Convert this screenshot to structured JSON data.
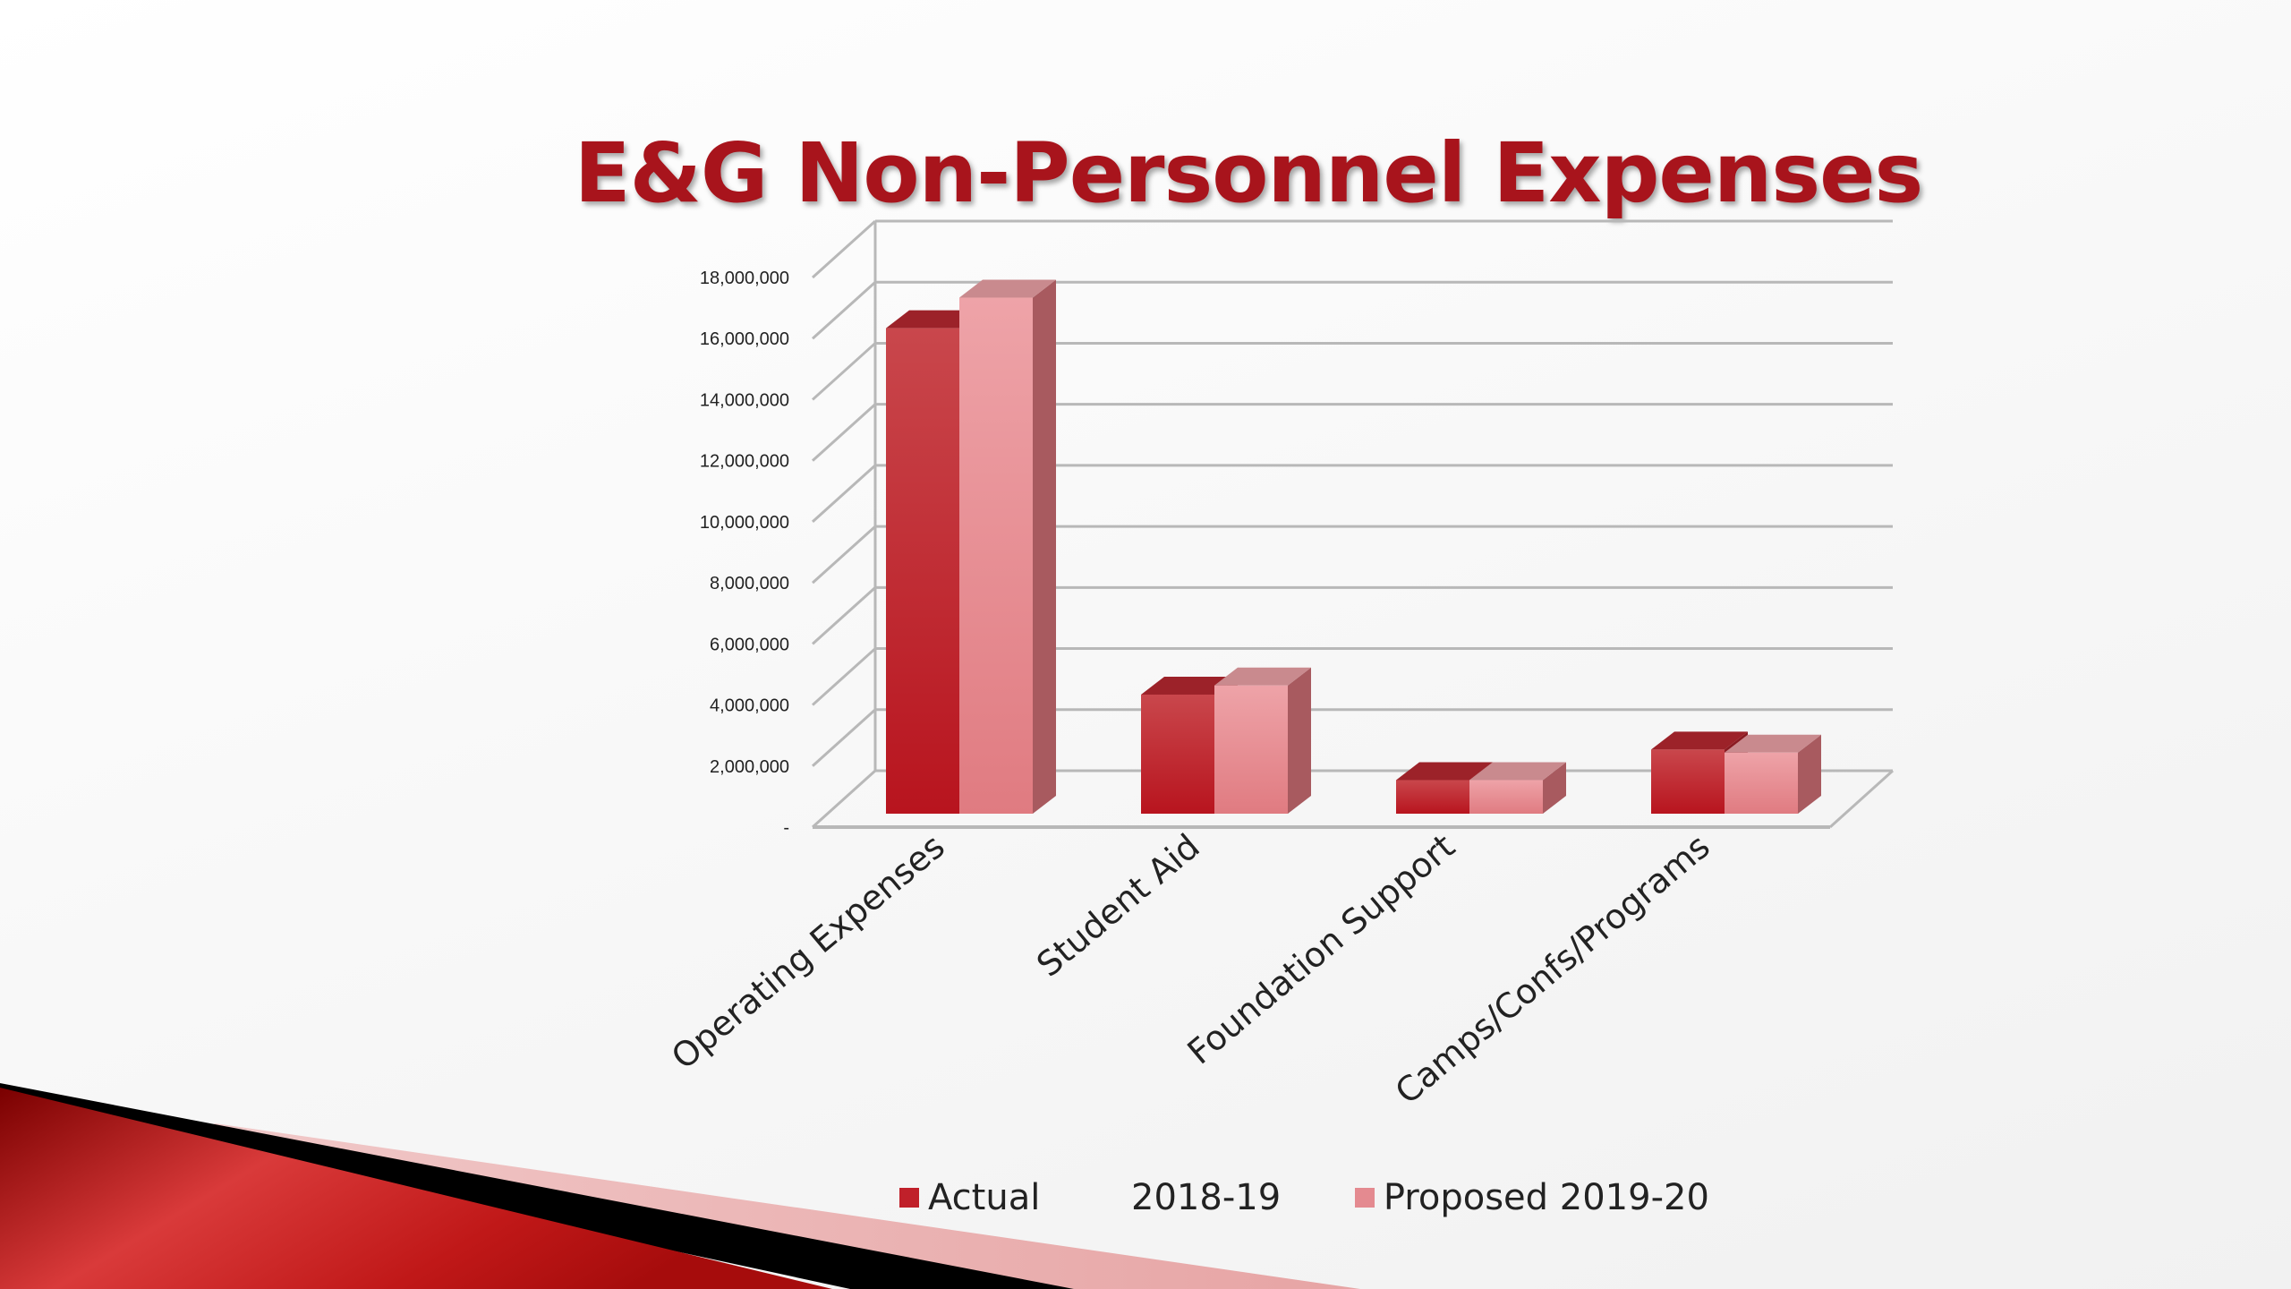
{
  "slide": {
    "title": "E&G Non-Personnel Expenses"
  },
  "colors": {
    "title": "#a8141c",
    "actual": "#c0202a",
    "proposed": "#e48a90",
    "gridline": "#b8b8b8",
    "banner_dark": "#7a0000",
    "banner_red": "#d32a2a",
    "banner_light": "#e8a6a6",
    "banner_black": "#000000"
  },
  "chart_data": {
    "type": "bar",
    "style": "3d-clustered-column",
    "categories": [
      "Operating Expenses",
      "Student Aid",
      "Foundation Support",
      "Camps/Confs/Programs"
    ],
    "series": [
      {
        "name": "Actual        2018-19",
        "values": [
          15900000,
          3900000,
          1100000,
          2100000
        ]
      },
      {
        "name": "Proposed 2019-20",
        "values": [
          16900000,
          4200000,
          1100000,
          2000000
        ]
      }
    ],
    "yticks": [
      "-",
      "2,000,000",
      "4,000,000",
      "6,000,000",
      "8,000,000",
      "10,000,000",
      "12,000,000",
      "14,000,000",
      "16,000,000",
      "18,000,000"
    ],
    "ylim": [
      0,
      18000000
    ],
    "grid": true,
    "legend_position": "bottom",
    "xlabel": "",
    "ylabel": ""
  }
}
